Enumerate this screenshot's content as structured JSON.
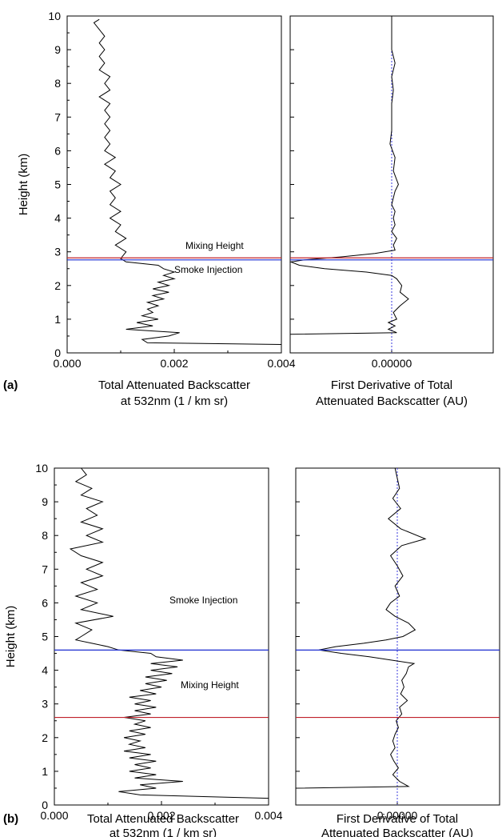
{
  "chart_data": [
    {
      "panel": "(a)",
      "type": "line",
      "title": "",
      "ylabel": "Height (km)",
      "ylim": [
        0,
        10
      ],
      "yticks": [
        "0",
        "1",
        "2",
        "3",
        "4",
        "5",
        "6",
        "7",
        "8",
        "9",
        "10"
      ],
      "annotations": [
        "Mixing Height",
        "Smoke Injection"
      ],
      "mixing_height_km": 2.82,
      "smoke_injection_km": 2.76,
      "line_colors": {
        "mixing": "#c0202a",
        "injection": "#1a2bd0"
      },
      "left": {
        "xlabel": "Total Attenuated Backscatter",
        "xlabel2": "at 532nm (1 / km sr)",
        "xlim": [
          0,
          0.004
        ],
        "xticks": [
          "0.000",
          "0.002",
          "0.004"
        ],
        "y": [
          0.25,
          0.3,
          0.4,
          0.5,
          0.6,
          0.7,
          0.8,
          0.9,
          1.0,
          1.1,
          1.2,
          1.3,
          1.4,
          1.5,
          1.6,
          1.7,
          1.8,
          1.9,
          2.0,
          2.1,
          2.2,
          2.3,
          2.4,
          2.5,
          2.6,
          2.7,
          2.8,
          3.0,
          3.2,
          3.4,
          3.6,
          3.8,
          4.0,
          4.2,
          4.4,
          4.6,
          4.8,
          5.0,
          5.2,
          5.4,
          5.6,
          5.8,
          6.0,
          6.2,
          6.4,
          6.6,
          6.8,
          7.0,
          7.2,
          7.4,
          7.6,
          7.8,
          8.0,
          8.2,
          8.4,
          8.6,
          8.8,
          9.0,
          9.2,
          9.4,
          9.6,
          9.8,
          9.9
        ],
        "x": [
          0.004,
          0.0015,
          0.0014,
          0.0019,
          0.0021,
          0.0011,
          0.0016,
          0.0013,
          0.0017,
          0.0014,
          0.0016,
          0.0015,
          0.0017,
          0.0015,
          0.0018,
          0.0016,
          0.0019,
          0.0016,
          0.0019,
          0.0017,
          0.002,
          0.0018,
          0.002,
          0.0018,
          0.0017,
          0.0011,
          0.001,
          0.0011,
          0.0009,
          0.0011,
          0.0009,
          0.001,
          0.0008,
          0.001,
          0.0008,
          0.0009,
          0.0008,
          0.001,
          0.0008,
          0.0009,
          0.0007,
          0.0009,
          0.0007,
          0.0008,
          0.0007,
          0.0008,
          0.0007,
          0.0008,
          0.0007,
          0.0008,
          0.0006,
          0.0008,
          0.0007,
          0.0008,
          0.0006,
          0.0007,
          0.0006,
          0.0007,
          0.0006,
          0.0007,
          0.0006,
          0.0005,
          0.0006
        ]
      },
      "right": {
        "xlabel": "First Derivative of Total",
        "xlabel2": "Attenuated Backscatter (AU)",
        "xtick": "0.00000",
        "zero_line_color": "#3a3adc",
        "y": [
          0.55,
          0.6,
          0.7,
          0.8,
          0.9,
          1.0,
          1.2,
          1.4,
          1.6,
          1.8,
          2.0,
          2.2,
          2.3,
          2.4,
          2.5,
          2.6,
          2.7,
          2.76,
          2.85,
          2.95,
          3.05,
          3.2,
          3.4,
          3.6,
          3.8,
          4.0,
          4.2,
          4.4,
          4.6,
          4.8,
          5.0,
          5.4,
          5.8,
          6.2,
          6.6,
          7.0,
          7.4,
          7.8,
          8.2,
          8.6,
          9.0,
          9.4,
          9.8,
          10.0
        ],
        "x": [
          -12.0,
          0.3,
          -0.2,
          0.2,
          -0.2,
          0.3,
          0.1,
          0.5,
          1.0,
          0.5,
          0.6,
          0.3,
          0.0,
          -1.5,
          -4.0,
          -5.5,
          -6.0,
          -5.2,
          -3.0,
          -1.0,
          0.2,
          0.1,
          0.3,
          0.0,
          0.2,
          0.1,
          0.2,
          0.0,
          0.1,
          0.2,
          0.4,
          0.1,
          0.2,
          -0.1,
          0.0,
          0.0,
          0.0,
          0.1,
          0.0,
          0.2,
          0.0,
          0.0,
          0.0,
          0.0
        ]
      }
    },
    {
      "panel": "(b)",
      "type": "line",
      "title": "",
      "ylabel": "Height (km)",
      "ylim": [
        0,
        10
      ],
      "yticks": [
        "0",
        "1",
        "2",
        "3",
        "4",
        "5",
        "6",
        "7",
        "8",
        "9",
        "10"
      ],
      "annotations": [
        "Smoke Injection",
        "Mixing Height"
      ],
      "mixing_height_km": 2.6,
      "smoke_injection_km": 4.6,
      "line_colors": {
        "mixing": "#c0202a",
        "injection": "#1a2bd0"
      },
      "left": {
        "xlabel": "Total Attenuated Backscatter",
        "xlabel2": "at 532nm (1 / km sr)",
        "xlim": [
          0,
          0.004
        ],
        "xticks": [
          "0.000",
          "0.002",
          "0.004"
        ],
        "y": [
          0.2,
          0.3,
          0.4,
          0.5,
          0.6,
          0.7,
          0.8,
          0.9,
          1.0,
          1.1,
          1.2,
          1.3,
          1.4,
          1.5,
          1.6,
          1.7,
          1.8,
          1.9,
          2.0,
          2.1,
          2.2,
          2.3,
          2.4,
          2.5,
          2.6,
          2.7,
          2.8,
          2.9,
          3.0,
          3.1,
          3.2,
          3.3,
          3.4,
          3.5,
          3.6,
          3.7,
          3.8,
          3.9,
          4.0,
          4.1,
          4.2,
          4.3,
          4.4,
          4.5,
          4.6,
          4.7,
          4.8,
          4.9,
          5.0,
          5.2,
          5.4,
          5.6,
          5.8,
          6.0,
          6.2,
          6.4,
          6.6,
          6.8,
          7.0,
          7.2,
          7.4,
          7.6,
          7.8,
          8.0,
          8.2,
          8.4,
          8.6,
          8.8,
          9.0,
          9.2,
          9.4,
          9.6,
          9.8,
          10.0
        ],
        "x": [
          0.004,
          0.0016,
          0.0012,
          0.0019,
          0.0016,
          0.0024,
          0.0015,
          0.0019,
          0.0014,
          0.0018,
          0.0015,
          0.0019,
          0.0014,
          0.0018,
          0.0013,
          0.0017,
          0.0014,
          0.0016,
          0.0013,
          0.0017,
          0.0014,
          0.0018,
          0.0015,
          0.0017,
          0.0013,
          0.0018,
          0.0015,
          0.0019,
          0.0015,
          0.0018,
          0.0014,
          0.0019,
          0.0016,
          0.002,
          0.0017,
          0.0021,
          0.0017,
          0.0022,
          0.0018,
          0.0023,
          0.0018,
          0.0024,
          0.0019,
          0.0018,
          0.0012,
          0.001,
          0.0007,
          0.0004,
          0.0005,
          0.0007,
          0.0004,
          0.0011,
          0.0005,
          0.0008,
          0.0004,
          0.0008,
          0.0005,
          0.0009,
          0.0006,
          0.0009,
          0.0005,
          0.0003,
          0.0009,
          0.0006,
          0.0009,
          0.0005,
          0.0008,
          0.0006,
          0.0009,
          0.0005,
          0.0007,
          0.0004,
          0.0006,
          0.0005
        ]
      },
      "right": {
        "xlabel": "First Derivative of Total",
        "xlabel2": "Attenuated Backscatter (AU)",
        "xtick": "0.00000",
        "zero_line_color": "#3a3adc",
        "y": [
          0.5,
          0.55,
          0.7,
          0.9,
          1.1,
          1.3,
          1.5,
          1.7,
          1.9,
          2.1,
          2.3,
          2.5,
          2.7,
          2.9,
          3.1,
          3.3,
          3.5,
          3.7,
          3.9,
          4.1,
          4.2,
          4.3,
          4.4,
          4.5,
          4.6,
          4.7,
          4.8,
          4.9,
          5.0,
          5.2,
          5.4,
          5.6,
          5.8,
          6.0,
          6.2,
          6.5,
          6.8,
          7.1,
          7.4,
          7.7,
          7.9,
          8.2,
          8.5,
          8.8,
          9.1,
          9.4,
          9.7,
          10.0
        ],
        "x": [
          -11.0,
          1.0,
          0.2,
          -0.4,
          0.1,
          -0.3,
          -0.6,
          -0.2,
          -0.4,
          -0.2,
          0.1,
          -0.1,
          0.4,
          0.2,
          0.9,
          0.3,
          0.6,
          0.4,
          0.8,
          1.0,
          1.5,
          -0.5,
          -2.5,
          -5.0,
          -7.0,
          -5.5,
          -3.0,
          -1.0,
          0.5,
          1.6,
          1.0,
          -0.2,
          -1.0,
          -0.6,
          0.2,
          -0.2,
          0.5,
          0.0,
          -0.6,
          0.4,
          2.5,
          0.3,
          -0.8,
          0.3,
          -0.4,
          0.2,
          0.0,
          -0.2
        ]
      }
    }
  ]
}
